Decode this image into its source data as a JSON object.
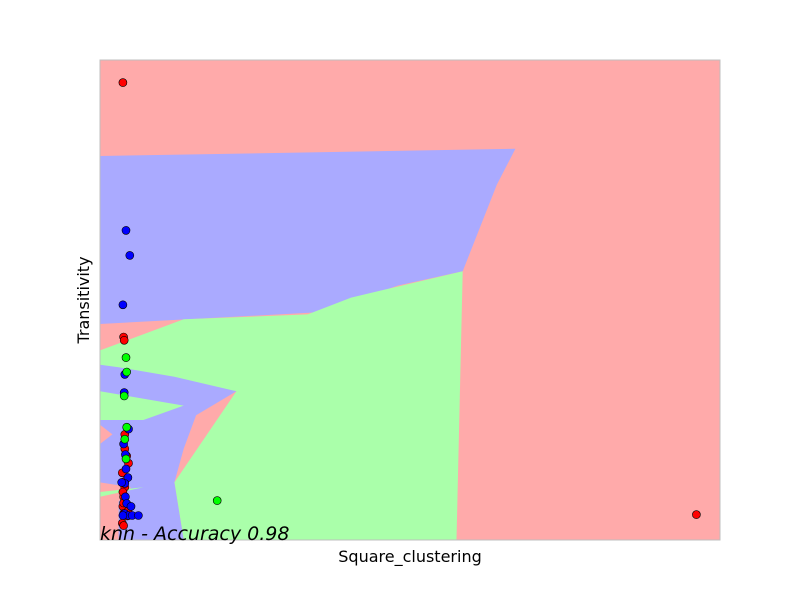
{
  "chart_data": {
    "type": "scatter",
    "title": "",
    "xlabel": "Square_clustering",
    "ylabel": "Transitivity",
    "annotation": "knn - Accuracy 0.98",
    "xticks": [],
    "yticks": [],
    "xlim": [
      0,
      1
    ],
    "ylim": [
      0,
      1
    ],
    "grid": false,
    "legend": "none",
    "class_colors": {
      "red": "#ff0000",
      "blue": "#0000ff",
      "green": "#00ff00"
    },
    "region_colors": {
      "red": "#ffaaaa",
      "blue": "#aaaaff",
      "green": "#aaffaa"
    },
    "decision_regions": [
      {
        "class": "red",
        "polygon": [
          [
            0,
            0
          ],
          [
            1,
            0
          ],
          [
            1,
            1
          ],
          [
            0,
            1
          ]
        ]
      },
      {
        "class": "blue",
        "polygon": [
          [
            0,
            0.8
          ],
          [
            0.67,
            0.815
          ],
          [
            0.64,
            0.74
          ],
          [
            0.585,
            0.56
          ],
          [
            0.48,
            0.53
          ],
          [
            0.36,
            0.475
          ],
          [
            0,
            0.45
          ]
        ]
      },
      {
        "class": "green",
        "polygon": [
          [
            0,
            0.395
          ],
          [
            0.135,
            0.46
          ],
          [
            0.335,
            0.47
          ],
          [
            0.405,
            0.505
          ],
          [
            0.585,
            0.56
          ],
          [
            0.575,
            0
          ],
          [
            0.135,
            0
          ],
          [
            0.12,
            0.12
          ],
          [
            0.22,
            0.31
          ],
          [
            0.13,
            0.33
          ],
          [
            0,
            0.34
          ]
        ]
      },
      {
        "class": "blue",
        "polygon": [
          [
            0,
            0.365
          ],
          [
            0.03,
            0.36
          ],
          [
            0.12,
            0.34
          ],
          [
            0.22,
            0.31
          ],
          [
            0.155,
            0.26
          ],
          [
            0.135,
            0.19
          ],
          [
            0.12,
            0.12
          ],
          [
            0.135,
            0
          ],
          [
            0.03,
            0
          ],
          [
            0.03,
            0.08
          ],
          [
            0.05,
            0.11
          ],
          [
            0.0,
            0.12
          ],
          [
            0,
            0.2
          ],
          [
            0.02,
            0.22
          ],
          [
            0,
            0.24
          ],
          [
            0,
            0.3
          ],
          [
            0.08,
            0.28
          ],
          [
            0.0,
            0.29
          ]
        ]
      },
      {
        "class": "green",
        "polygon": [
          [
            0,
            0.31
          ],
          [
            0.135,
            0.28
          ],
          [
            0.07,
            0.25
          ],
          [
            0,
            0.25
          ]
        ]
      },
      {
        "class": "green",
        "polygon": [
          [
            0,
            0.1
          ],
          [
            0.07,
            0.11
          ],
          [
            0.0,
            0.09
          ]
        ]
      }
    ],
    "series": [
      {
        "class": "red",
        "points": [
          [
            0.037,
            0.953
          ],
          [
            0.038,
            0.423
          ],
          [
            0.039,
            0.416
          ],
          [
            0.04,
            0.11
          ],
          [
            0.038,
            0.09
          ],
          [
            0.037,
            0.07
          ],
          [
            0.044,
            0.05
          ],
          [
            0.046,
            0.16
          ],
          [
            0.04,
            0.122
          ],
          [
            0.038,
            0.077
          ],
          [
            0.038,
            0.055
          ],
          [
            0.036,
            0.035
          ],
          [
            0.038,
            0.03
          ],
          [
            0.04,
            0.22
          ],
          [
            0.043,
            0.175
          ],
          [
            0.036,
            0.14
          ],
          [
            0.962,
            0.053
          ],
          [
            0.04,
            0.19
          ],
          [
            0.045,
            0.06
          ],
          [
            0.037,
            0.1
          ]
        ]
      },
      {
        "class": "blue",
        "points": [
          [
            0.042,
            0.645
          ],
          [
            0.048,
            0.593
          ],
          [
            0.037,
            0.49
          ],
          [
            0.039,
            0.307
          ],
          [
            0.04,
            0.345
          ],
          [
            0.046,
            0.231
          ],
          [
            0.041,
            0.178
          ],
          [
            0.042,
            0.148
          ],
          [
            0.045,
            0.13
          ],
          [
            0.04,
            0.118
          ],
          [
            0.041,
            0.09
          ],
          [
            0.04,
            0.055
          ],
          [
            0.046,
            0.051
          ],
          [
            0.052,
            0.051
          ],
          [
            0.062,
            0.051
          ],
          [
            0.037,
            0.051
          ],
          [
            0.043,
            0.076
          ],
          [
            0.035,
            0.12
          ],
          [
            0.038,
            0.2
          ],
          [
            0.05,
            0.07
          ]
        ]
      },
      {
        "class": "green",
        "points": [
          [
            0.042,
            0.38
          ],
          [
            0.043,
            0.35
          ],
          [
            0.039,
            0.3
          ],
          [
            0.043,
            0.235
          ],
          [
            0.042,
            0.169
          ],
          [
            0.189,
            0.082
          ],
          [
            0.04,
            0.21
          ]
        ]
      }
    ]
  }
}
